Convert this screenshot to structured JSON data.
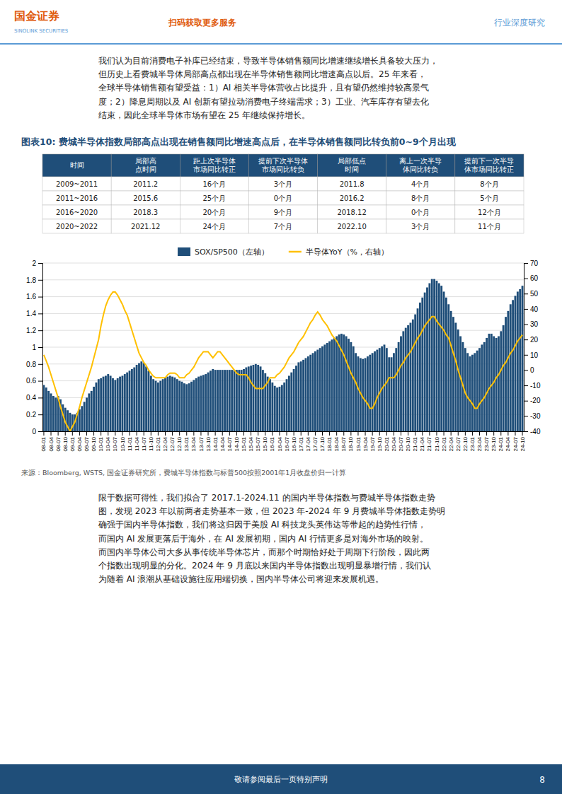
{
  "chart_data": {
    "type": "bar",
    "title": "图表10: 费城半导体指数局部高点出现在销售额同比增速高点后，在半导体销售额同比转负前0~9个月出现",
    "categories": [
      "08-01",
      null,
      null,
      "08-04",
      null,
      null,
      "08-07",
      null,
      null,
      "08-10",
      null,
      null,
      "09-01",
      null,
      null,
      "09-04",
      null,
      null,
      "09-07",
      null,
      null,
      "09-10",
      null,
      null,
      "10-01",
      null,
      null,
      "10-04",
      null,
      null,
      "10-07",
      null,
      null,
      "10-10",
      null,
      null,
      "11-01",
      null,
      null,
      "11-04",
      null,
      null,
      "11-07",
      null,
      null,
      "11-10",
      null,
      null,
      "12-01",
      null,
      null,
      "12-04",
      null,
      null,
      "12-07",
      null,
      null,
      "12-10",
      null,
      null,
      "13-01",
      null,
      null,
      "13-04",
      null,
      null,
      "13-07",
      null,
      null,
      "13-10",
      null,
      null,
      "14-01",
      null,
      null,
      "14-04",
      null,
      null,
      "14-07",
      null,
      null,
      "14-10",
      null,
      null,
      "15-01",
      null,
      null,
      "15-04",
      null,
      null,
      "15-07",
      null,
      null,
      "15-10",
      null,
      null,
      "16-01",
      null,
      null,
      "16-04",
      null,
      null,
      "16-07",
      null,
      null,
      "16-10",
      null,
      null,
      "17-01",
      null,
      null,
      "17-04",
      null,
      null,
      "17-07",
      null,
      null,
      "17-10",
      null,
      null,
      "18-01",
      null,
      null,
      "18-04",
      null,
      null,
      "18-07",
      null,
      null,
      "18-10",
      null,
      null,
      "19-01",
      null,
      null,
      "19-04",
      null,
      null,
      "19-07",
      null,
      null,
      "19-10",
      null,
      null,
      "20-01",
      null,
      null,
      "20-04",
      null,
      null,
      "20-07",
      null,
      null,
      "20-10",
      null,
      null,
      "21-01",
      null,
      null,
      "21-04",
      null,
      null,
      "21-07",
      null,
      null,
      "21-10",
      null,
      null,
      "22-01",
      null,
      null,
      "22-04",
      null,
      null,
      "22-07",
      null,
      null,
      "22-10",
      null,
      null,
      "23-01",
      null,
      null,
      "23-04",
      null,
      null,
      "23-07",
      null,
      null,
      "23-10",
      null,
      null,
      "24-01",
      null,
      null,
      "24-04",
      null,
      null,
      "24-07",
      null,
      null,
      "24-10"
    ],
    "series": [
      {
        "name": "SOX/SP500（左轴）",
        "type": "bar",
        "color": "#1F4E79",
        "values": [
          0.55,
          0.52,
          0.48,
          0.45,
          0.42,
          0.4,
          0.42,
          0.38,
          0.32,
          0.28,
          0.25,
          0.22,
          0.2,
          0.2,
          0.22,
          0.26,
          0.3,
          0.35,
          0.4,
          0.45,
          0.48,
          0.53,
          0.58,
          0.62,
          0.63,
          0.65,
          0.66,
          0.68,
          0.66,
          0.63,
          0.61,
          0.63,
          0.65,
          0.66,
          0.68,
          0.7,
          0.72,
          0.74,
          0.76,
          0.79,
          0.81,
          0.83,
          0.81,
          0.77,
          0.72,
          0.66,
          0.62,
          0.6,
          0.58,
          0.6,
          0.62,
          0.64,
          0.65,
          0.66,
          0.65,
          0.64,
          0.62,
          0.6,
          0.59,
          0.57,
          0.56,
          0.57,
          0.59,
          0.61,
          0.63,
          0.65,
          0.66,
          0.67,
          0.68,
          0.7,
          0.72,
          0.74,
          0.73,
          0.73,
          0.73,
          0.73,
          0.73,
          0.73,
          0.73,
          0.73,
          0.73,
          0.73,
          0.73,
          0.73,
          0.74,
          0.76,
          0.77,
          0.78,
          0.79,
          0.8,
          0.79,
          0.77,
          0.73,
          0.69,
          0.65,
          0.62,
          0.58,
          0.54,
          0.52,
          0.53,
          0.55,
          0.58,
          0.62,
          0.66,
          0.7,
          0.74,
          0.78,
          0.82,
          0.83,
          0.85,
          0.87,
          0.89,
          0.91,
          0.93,
          0.95,
          0.97,
          0.99,
          1.01,
          1.03,
          1.05,
          1.07,
          1.09,
          1.11,
          1.13,
          1.15,
          1.16,
          1.15,
          1.13,
          1.1,
          1.06,
          1.01,
          0.93,
          0.89,
          0.87,
          0.86,
          0.87,
          0.89,
          0.91,
          0.93,
          0.95,
          0.97,
          0.99,
          1.01,
          1.03,
          0.99,
          0.88,
          0.88,
          0.93,
          0.99,
          1.06,
          1.13,
          1.19,
          1.23,
          1.26,
          1.29,
          1.33,
          1.39,
          1.46,
          1.53,
          1.59,
          1.65,
          1.71,
          1.76,
          1.81,
          1.81,
          1.79,
          1.76,
          1.73,
          1.66,
          1.59,
          1.51,
          1.43,
          1.36,
          1.29,
          1.21,
          1.13,
          1.06,
          0.99,
          0.93,
          0.89,
          0.91,
          0.93,
          0.96,
          0.99,
          1.03,
          1.06,
          1.11,
          1.16,
          1.16,
          1.13,
          1.11,
          1.13,
          1.19,
          1.26,
          1.36,
          1.43,
          1.51,
          1.56,
          1.61,
          1.66,
          1.69,
          1.73
        ]
      },
      {
        "name": "半导体YoY（%，右轴）",
        "type": "line",
        "axis": "y2",
        "color": "#FFC000",
        "values": [
          10,
          6,
          2,
          -3,
          -8,
          -13,
          -18,
          -24,
          -29,
          -34,
          -37,
          -40,
          -37,
          -34,
          -29,
          -24,
          -18,
          -13,
          -8,
          -3,
          2,
          8,
          14,
          20,
          29,
          36,
          42,
          46,
          49,
          51,
          51,
          49,
          46,
          43,
          39,
          36,
          31,
          26,
          21,
          16,
          11,
          8,
          5,
          3,
          0,
          -2,
          -4,
          -5,
          -5,
          -5,
          -5,
          -5,
          -3,
          -2,
          -2,
          -2,
          -3,
          -5,
          -5,
          -5,
          -3,
          -2,
          0,
          2,
          5,
          8,
          10,
          12,
          12,
          12,
          10,
          8,
          10,
          12,
          12,
          10,
          8,
          6,
          4,
          2,
          0,
          -2,
          -3,
          -3,
          -3,
          -3,
          -5,
          -8,
          -10,
          -12,
          -12,
          -12,
          -12,
          -10,
          -8,
          -5,
          -5,
          -5,
          -3,
          -2,
          0,
          2,
          5,
          8,
          10,
          12,
          15,
          18,
          20,
          22,
          25,
          28,
          31,
          33,
          36,
          38,
          36,
          33,
          31,
          29,
          26,
          23,
          21,
          19,
          16,
          13,
          10,
          6,
          2,
          -2,
          -5,
          -8,
          -12,
          -15,
          -18,
          -20,
          -22,
          -25,
          -25,
          -22,
          -18,
          -15,
          -12,
          -10,
          -8,
          -5,
          -5,
          -5,
          -3,
          0,
          3,
          5,
          8,
          10,
          12,
          15,
          18,
          21,
          23,
          26,
          29,
          31,
          33,
          35,
          35,
          32,
          30,
          28,
          26,
          23,
          21,
          16,
          11,
          6,
          0,
          -5,
          -10,
          -15,
          -18,
          -20,
          -22,
          -25,
          -25,
          -22,
          -20,
          -18,
          -15,
          -12,
          -10,
          -8,
          -5,
          -3,
          0,
          3,
          5,
          8,
          11,
          13,
          16,
          19,
          21,
          23
        ]
      }
    ],
    "ylim": [
      0,
      2
    ],
    "yticks": [
      0,
      0.2,
      0.4,
      0.6,
      0.8,
      1,
      1.2,
      1.4,
      1.6,
      1.8,
      2
    ],
    "y2lim": [
      -40,
      70
    ],
    "y2ticks": [
      -40,
      -30,
      -20,
      -10,
      0,
      10,
      20,
      30,
      40,
      50,
      60,
      70
    ],
    "grid": true,
    "legend": "top"
  },
  "table": {
    "header_color": "#1F4E79",
    "headers": [
      "时间",
      "局部高\n点时间",
      "距上次半导体\n市场同比转正",
      "提前下次半导体\n市场同比转负",
      "局部低点\n时间",
      "离上一次半导\n体同比转负",
      "提前下一次半导\n体市场同比转正"
    ],
    "rows": [
      [
        "2009~2011",
        "2011.2",
        "16个月",
        "3个月",
        "2011.8",
        "4个月",
        "8个月"
      ],
      [
        "2011~2016",
        "2015.6",
        "25个月",
        "0个月",
        "2016.2",
        "8个月",
        "5个月"
      ],
      [
        "2016~2020",
        "2018.3",
        "20个月",
        "9个月",
        "2018.12",
        "0个月",
        "12个月"
      ],
      [
        "2020~2022",
        "2021.12",
        "24个月",
        "7个月",
        "2022.10",
        "3个月",
        "11个月"
      ]
    ]
  },
  "page": {
    "company_name": "国金证券",
    "company_name_en": "SINOLINK SECURITIES",
    "service_text": "扫码获取更多服务",
    "dept_text": "行业深度研究",
    "intro_text": "我们认为目前消费电子补库已经结束，导致半导体销售额同比增速继续增长具备较大压力，\n但历史上看费城半导体局部高点都出现在半导体销售额同比增速高点以后。25 年来看，\n全球半导体销售额有望受益：1）AI 相关半导体营收占比提升，且有望仍然维持较高景气\n度；2）降息周期以及 AI 创新有望拉动消费电子终端需求；3）工业、汽车库存有望去化\n结束，因此全球半导体市场有望在 25 年继续保持增长。",
    "source_text": "来源：Bloomberg, WSTS, 国金证券研究所，费城半导体指数与标普500按照2001年1月收盘价归一计算",
    "body_text": "限于数据可得性，我们拟合了 2017.1-2024.11 的国内半导体指数与费城半导体指数走势\n图，发现 2023 年以前两者走势基本一致，但 2023 年-2024 年 9 月费城半导体指数走势明\n确强于国内半导体指数，我们将这归因于美股 AI 科技龙头英伟达等带起的趋势性行情，\n而国内 AI 发展更落后于海外，在 AI 发展初期，国内 AI 行情更多是对海外市场的映射。\n而国内半导体公司大多从事传统半导体芯片，而那个时期恰好处于周期下行阶段，因此两\n个指数出现明显的分化。2024 年 9 月底以来国内半导体指数出现明显暴增行情，我们认\n为随着 AI 浪潮从基础设施往应用端切换，国内半导体公司将迎来发展机遇。",
    "footer_text": "敬请参阅最后一页特别声明",
    "page_number": "8",
    "accent_color": "#E05B0E",
    "header_line_color": "#5B9BD5",
    "title_color": "#1F4E79",
    "footer_bg_color": "#1F4E79"
  }
}
